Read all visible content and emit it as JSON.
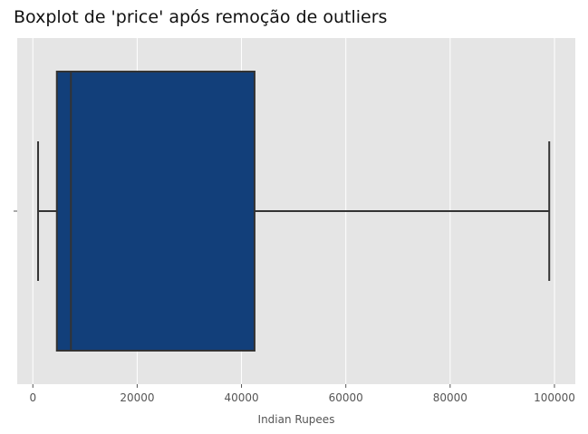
{
  "chart_data": {
    "type": "boxplot",
    "title": "Boxplot de 'price' após remoção de outliers",
    "xlabel": "Indian Rupees",
    "ylabel": "",
    "orientation": "horizontal",
    "xlim": [
      -3000,
      104000
    ],
    "x_ticks": [
      0,
      20000,
      40000,
      60000,
      80000,
      100000
    ],
    "x_tick_labels": [
      "0",
      "20000",
      "40000",
      "60000",
      "80000",
      "100000"
    ],
    "y_tick_labels": [
      ""
    ],
    "grid": true,
    "box": {
      "whisker_low": 1000,
      "q1": 4600,
      "median": 7300,
      "q3": 42500,
      "whisker_high": 99000
    },
    "colors": {
      "box_fill": "#123F7A",
      "line": "#333333",
      "plot_background": "#E5E5E5",
      "grid": "#FFFFFF"
    }
  }
}
